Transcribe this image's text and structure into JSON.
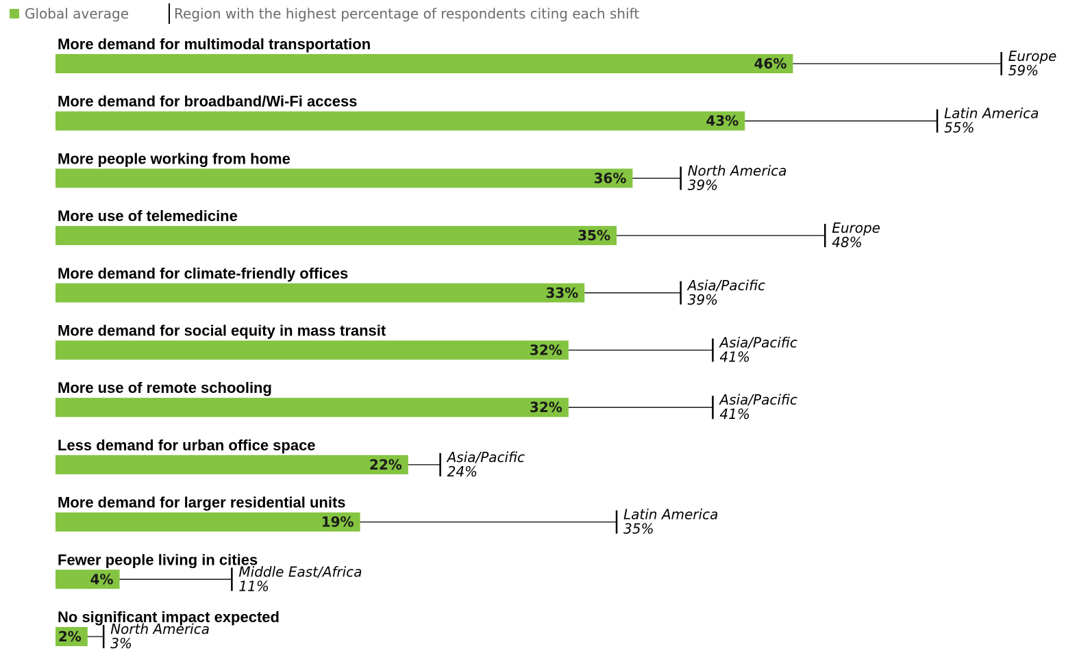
{
  "legend": {
    "global_label": "Global average",
    "region_label": "Region with the highest percentage of respondents citing each shift"
  },
  "colors": {
    "bar": "#84c441",
    "line": "#000000"
  },
  "chart_data": {
    "type": "bar",
    "orientation": "horizontal",
    "unit": "%",
    "categories": [
      "More demand for multimodal transportation",
      "More demand for broadband/Wi-Fi access",
      "More people working from home",
      "More use of telemedicine",
      "More demand for climate-friendly offices",
      "More demand for social equity in mass transit",
      "More use of remote schooling",
      "Less demand for urban office space",
      "More demand for larger residential units",
      "Fewer people living in cities",
      "No significant impact expected"
    ],
    "series": [
      {
        "name": "Global average",
        "values": [
          46,
          43,
          36,
          35,
          33,
          32,
          32,
          22,
          19,
          4,
          2
        ]
      },
      {
        "name": "Region with the highest percentage of respondents citing each shift",
        "values": [
          59,
          55,
          39,
          48,
          39,
          41,
          41,
          24,
          35,
          11,
          3
        ],
        "regions": [
          "Europe",
          "Latin America",
          "North America",
          "Europe",
          "Asia/Pacific",
          "Asia/Pacific",
          "Asia/Pacific",
          "Asia/Pacific",
          "Latin America",
          "Middle East/Africa",
          "North America"
        ]
      }
    ],
    "title": "",
    "xlabel": "",
    "ylabel": "",
    "xlim": [
      0,
      60
    ],
    "grid": false,
    "legend_position": "top-left"
  }
}
